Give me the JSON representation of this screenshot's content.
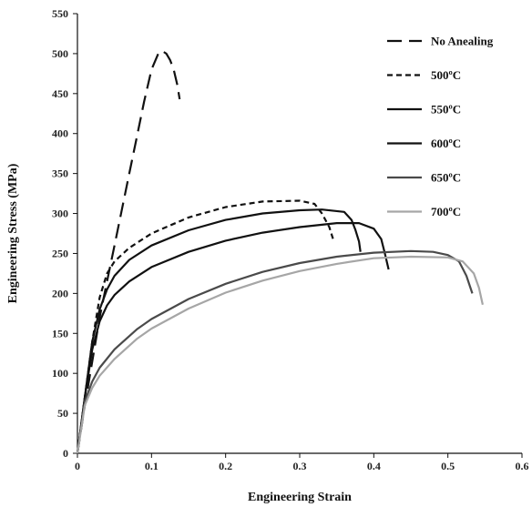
{
  "chart_data": {
    "type": "line",
    "title": "",
    "xlabel": "Engineering Strain",
    "ylabel": "Engineering Stress (MPa)",
    "xlim": [
      0,
      0.6
    ],
    "ylim": [
      0,
      550
    ],
    "x_ticks": [
      "0",
      "0.1",
      "0.2",
      "0.3",
      "0.4",
      "0.5",
      "0.6"
    ],
    "y_ticks": [
      "0",
      "50",
      "100",
      "150",
      "200",
      "250",
      "300",
      "350",
      "400",
      "450",
      "500",
      "550"
    ],
    "grid": false,
    "legend_position": "top-right",
    "series": [
      {
        "name": "No Anealing",
        "color": "#111111",
        "dash": "long-dash",
        "x": [
          0,
          0.01,
          0.02,
          0.03,
          0.04,
          0.05,
          0.06,
          0.07,
          0.08,
          0.09,
          0.1,
          0.11,
          0.115,
          0.12,
          0.125,
          0.13,
          0.135,
          0.138
        ],
        "y": [
          0,
          60,
          115,
          170,
          215,
          260,
          305,
          350,
          395,
          440,
          480,
          502,
          503,
          500,
          492,
          480,
          460,
          443
        ]
      },
      {
        "name": "500ºC",
        "color": "#111111",
        "dash": "short-dash",
        "x": [
          0,
          0.01,
          0.02,
          0.03,
          0.04,
          0.05,
          0.07,
          0.1,
          0.15,
          0.2,
          0.25,
          0.3,
          0.32,
          0.33,
          0.34,
          0.345
        ],
        "y": [
          0,
          70,
          140,
          195,
          225,
          240,
          257,
          275,
          295,
          308,
          315,
          316,
          312,
          300,
          283,
          268
        ]
      },
      {
        "name": "550ºC",
        "color": "#111111",
        "dash": "solid",
        "x": [
          0,
          0.01,
          0.02,
          0.03,
          0.04,
          0.05,
          0.07,
          0.1,
          0.15,
          0.2,
          0.25,
          0.3,
          0.33,
          0.36,
          0.37,
          0.375,
          0.38,
          0.382
        ],
        "y": [
          0,
          70,
          140,
          180,
          205,
          222,
          242,
          260,
          279,
          292,
          300,
          304,
          305,
          302,
          292,
          280,
          265,
          252
        ]
      },
      {
        "name": "600ºC",
        "color": "#111111",
        "dash": "solid",
        "x": [
          0,
          0.01,
          0.02,
          0.03,
          0.04,
          0.05,
          0.07,
          0.1,
          0.15,
          0.2,
          0.25,
          0.3,
          0.35,
          0.38,
          0.4,
          0.41,
          0.415,
          0.42
        ],
        "y": [
          0,
          70,
          130,
          165,
          185,
          198,
          215,
          233,
          252,
          266,
          276,
          283,
          288,
          288,
          281,
          268,
          250,
          230
        ]
      },
      {
        "name": "650ºC",
        "color": "#4a4a4a",
        "dash": "solid",
        "x": [
          0,
          0.01,
          0.02,
          0.03,
          0.05,
          0.08,
          0.1,
          0.15,
          0.2,
          0.25,
          0.3,
          0.35,
          0.4,
          0.45,
          0.48,
          0.5,
          0.515,
          0.525,
          0.533
        ],
        "y": [
          0,
          65,
          90,
          107,
          130,
          155,
          168,
          193,
          212,
          227,
          238,
          246,
          251,
          253,
          252,
          248,
          240,
          222,
          200
        ]
      },
      {
        "name": "700ºC",
        "color": "#a6a6a6",
        "dash": "solid",
        "x": [
          0,
          0.01,
          0.02,
          0.03,
          0.05,
          0.08,
          0.1,
          0.15,
          0.2,
          0.25,
          0.3,
          0.35,
          0.4,
          0.45,
          0.5,
          0.52,
          0.535,
          0.542,
          0.547
        ],
        "y": [
          0,
          60,
          82,
          97,
          118,
          143,
          156,
          181,
          201,
          216,
          228,
          237,
          244,
          246,
          245,
          240,
          225,
          207,
          186
        ]
      }
    ]
  }
}
